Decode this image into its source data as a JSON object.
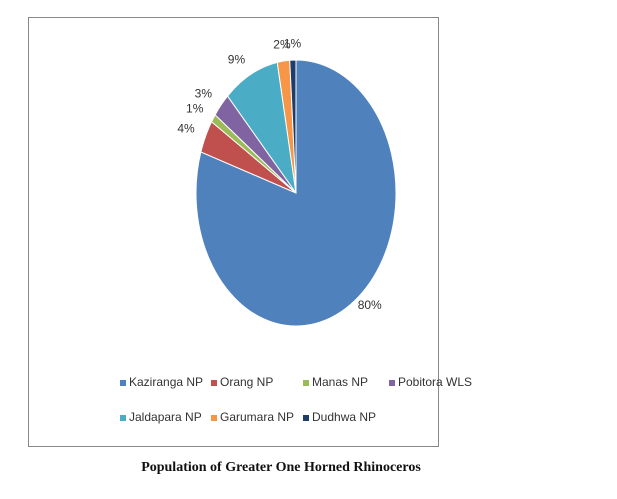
{
  "chart_data": {
    "type": "pie",
    "categories": [
      "Kaziranga NP",
      "Orang NP",
      "Manas NP",
      "Pobitora WLS",
      "Jaldapara NP",
      "Garumara NP",
      "Dudhwa NP"
    ],
    "values": [
      80,
      4,
      1,
      3,
      9,
      2,
      1
    ],
    "value_labels": [
      "80%",
      "4%",
      "1%",
      "3%",
      "9%",
      "2%",
      "1%"
    ],
    "colors": [
      "#4f81bd",
      "#c0504d",
      "#9bbb59",
      "#8064a2",
      "#4bacc6",
      "#f79646",
      "#1f3d6b"
    ],
    "legend": "bottom"
  },
  "caption": "Population of Greater One Horned Rhinoceros"
}
